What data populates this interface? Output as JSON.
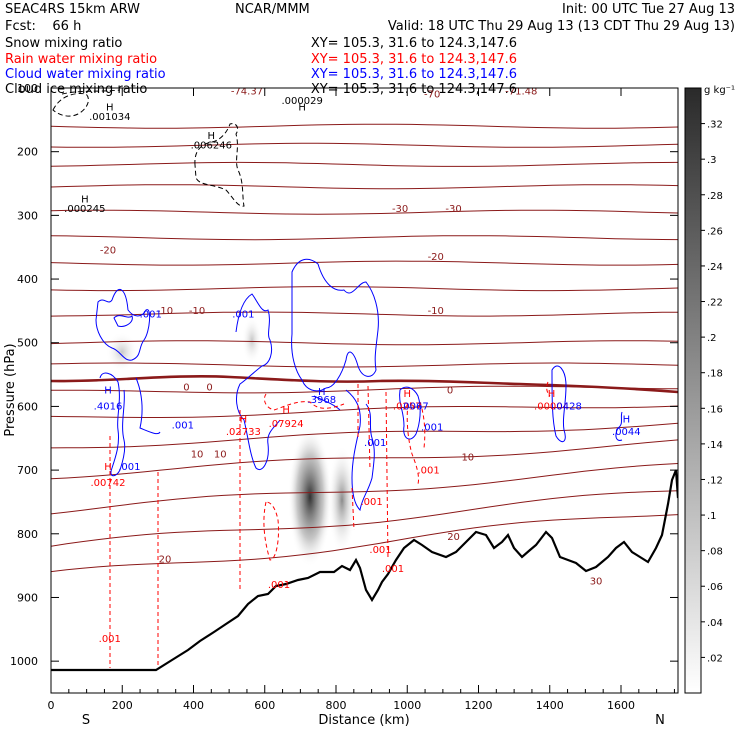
{
  "header": {
    "model": "SEAC4RS 15km ARW",
    "forecast": "Fcst:    66 h",
    "center": "NCAR/MMM",
    "init": "Init: 00 UTC Tue 27 Aug 13",
    "valid": "Valid: 18 UTC Thu 29 Aug 13 (13 CDT Thu 29 Aug 13)"
  },
  "legend": [
    {
      "name": "Snow mixing ratio",
      "xy": "XY= 105.3, 31.6 to 124.3,147.6",
      "color": "#000000"
    },
    {
      "name": "Rain water mixing ratio",
      "xy": "XY= 105.3, 31.6 to 124.3,147.6",
      "color": "#ff0000"
    },
    {
      "name": "Cloud water mixing ratio",
      "xy": "XY= 105.3, 31.6 to 124.3,147.6",
      "color": "#0000ff"
    },
    {
      "name": "Cloud ice mixing ratio",
      "xy": "XY= 105.3, 31.6 to 124.3,147.6",
      "color": "#000000"
    }
  ],
  "colorbar": {
    "unit": "g kg⁻¹",
    "ticks": [
      ".02",
      ".04",
      ".06",
      ".08",
      ".1",
      ".12",
      ".14",
      ".16",
      ".18",
      ".2",
      ".22",
      ".24",
      ".26",
      ".28",
      ".3",
      ".32"
    ],
    "range": [
      0,
      0.34
    ]
  },
  "chart_data": {
    "type": "contour cross-section",
    "xlabel": "Distance (km)",
    "ylabel": "Pressure (hPa)",
    "xlim": [
      0,
      1760
    ],
    "ylim": [
      1050,
      100
    ],
    "xticks": [
      0,
      200,
      400,
      600,
      800,
      1000,
      1200,
      1400,
      1600
    ],
    "yticks": [
      100,
      200,
      300,
      400,
      500,
      600,
      700,
      800,
      900,
      1000
    ],
    "x_end_labels": {
      "left": "S",
      "right": "N"
    },
    "temperature_labels": [
      {
        "text": "-74.37",
        "x": 550,
        "p": 110
      },
      {
        "text": "-70",
        "x": 1070,
        "p": 115
      },
      {
        "text": "-71.48",
        "x": 1320,
        "p": 110
      },
      {
        "text": "-71.4",
        "x": 1570,
        "p": 100
      },
      {
        "text": "-30",
        "x": 980,
        "p": 295
      },
      {
        "text": "-30",
        "x": 1130,
        "p": 295
      },
      {
        "text": "-20",
        "x": 160,
        "p": 360
      },
      {
        "text": "-20",
        "x": 1080,
        "p": 370
      },
      {
        "text": "-10",
        "x": 320,
        "p": 455
      },
      {
        "text": "-10",
        "x": 410,
        "p": 455
      },
      {
        "text": "-10",
        "x": 1080,
        "p": 455
      },
      {
        "text": "0",
        "x": 380,
        "p": 575
      },
      {
        "text": "0",
        "x": 445,
        "p": 575
      },
      {
        "text": "0",
        "x": 1120,
        "p": 580
      },
      {
        "text": "10",
        "x": 410,
        "p": 680
      },
      {
        "text": "10",
        "x": 475,
        "p": 680
      },
      {
        "text": "10",
        "x": 1170,
        "p": 685
      },
      {
        "text": "20",
        "x": 1130,
        "p": 810
      },
      {
        "text": "20",
        "x": 320,
        "p": 845
      },
      {
        "text": "30",
        "x": 1530,
        "p": 880
      },
      {
        "text": "30",
        "x": 300,
        "p": 1085
      }
    ],
    "isotherm_levels": [
      160,
      190,
      220,
      255,
      295,
      335,
      375,
      415,
      455,
      500,
      535,
      575,
      610,
      650,
      690,
      740,
      790,
      830
    ],
    "freezing_level": 575,
    "shading_maxima": [
      {
        "x": 740,
        "p": 495,
        "value": 0.3968
      },
      {
        "x": 835,
        "p": 500,
        "value": 0.2
      }
    ],
    "rain_labels": [
      {
        "text": "H",
        "x": 160,
        "p": 700
      },
      {
        "text": ".00742",
        "x": 160,
        "p": 725
      },
      {
        "text": "H",
        "x": 540,
        "p": 625
      },
      {
        "text": ".02733",
        "x": 540,
        "p": 645
      },
      {
        "text": "H",
        "x": 660,
        "p": 610
      },
      {
        "text": ".07924",
        "x": 660,
        "p": 632
      },
      {
        "text": "H",
        "x": 1000,
        "p": 585
      },
      {
        "text": ".0257",
        "x": 1000,
        "p": 605
      },
      {
        "text": "H",
        "x": 1405,
        "p": 585
      },
      {
        "text": ".00004",
        "x": 1405,
        "p": 605
      },
      {
        "text": ".001",
        "x": 165,
        "p": 970
      },
      {
        "text": ".001",
        "x": 640,
        "p": 885
      },
      {
        "text": ".001",
        "x": 900,
        "p": 755
      },
      {
        "text": ".001",
        "x": 925,
        "p": 830
      },
      {
        "text": ".001",
        "x": 960,
        "p": 860
      },
      {
        "text": ".001",
        "x": 1060,
        "p": 705
      }
    ],
    "cloud_water_labels": [
      {
        "text": ".001",
        "x": 280,
        "p": 460
      },
      {
        "text": ".001",
        "x": 540,
        "p": 460
      },
      {
        "text": "H",
        "x": 160,
        "p": 580
      },
      {
        "text": ".4016",
        "x": 160,
        "p": 605
      },
      {
        "text": ".001",
        "x": 370,
        "p": 635
      },
      {
        "text": ".001",
        "x": 220,
        "p": 700
      },
      {
        "text": "H",
        "x": 760,
        "p": 582
      },
      {
        "text": ".3968",
        "x": 760,
        "p": 595
      },
      {
        "text": ".001",
        "x": 910,
        "p": 662
      },
      {
        "text": ".0067",
        "x": 1020,
        "p": 605
      },
      {
        "text": ".001",
        "x": 1070,
        "p": 638
      },
      {
        "text": ".0428",
        "x": 1450,
        "p": 605
      },
      {
        "text": "H",
        "x": 1615,
        "p": 625
      },
      {
        "text": ".0044",
        "x": 1615,
        "p": 645
      }
    ],
    "ice_snow_labels": [
      {
        "text": "H",
        "x": 165,
        "p": 135
      },
      {
        "text": ".001034",
        "x": 165,
        "p": 150
      },
      {
        "text": "H",
        "x": 705,
        "p": 135
      },
      {
        "text": ".000029",
        "x": 705,
        "p": 125
      },
      {
        "text": "H",
        "x": 450,
        "p": 180
      },
      {
        "text": ".006246",
        "x": 450,
        "p": 195
      },
      {
        "text": "H",
        "x": 95,
        "p": 280
      },
      {
        "text": ".000245",
        "x": 95,
        "p": 295
      }
    ]
  }
}
